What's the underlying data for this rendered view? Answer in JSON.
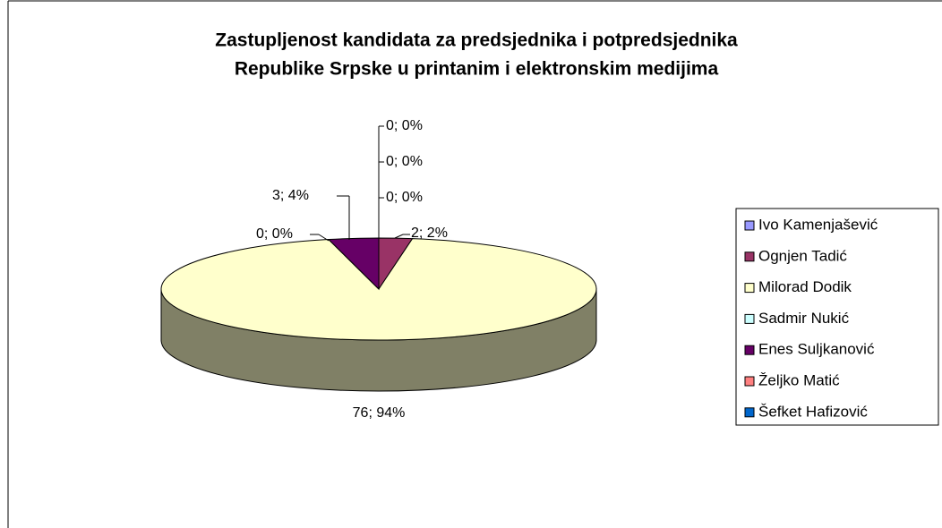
{
  "chart_data": {
    "type": "pie3d",
    "title": [
      "Zastupljenost kandidata za predsjednika i potpredsjednika",
      "Republike Srpske u printanim i elektronskim medijima"
    ],
    "categories": [
      "Ivo Kamenjašević",
      "Ognjen Tadić",
      "Milorad Dodik",
      "Sadmir Nukić",
      "Enes Suljkanović",
      "Željko Matić",
      "Šefket Hafizović"
    ],
    "values": [
      0,
      2,
      76,
      0,
      3,
      0,
      0
    ],
    "value_labels": [
      "0; 0%",
      "2; 2%",
      "76; 94%",
      "0; 0%",
      "3; 4%",
      "0; 0%",
      "0; 0%"
    ],
    "colors": [
      "#9999ff",
      "#993366",
      "#ffffcc",
      "#ccffff",
      "#660066",
      "#ff8080",
      "#0066cc"
    ],
    "legend": "right"
  }
}
